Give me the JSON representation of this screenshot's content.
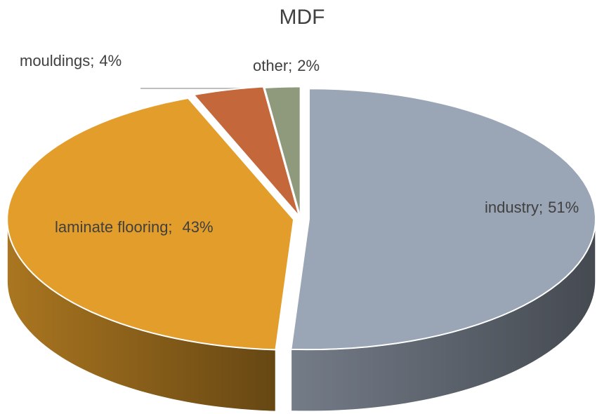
{
  "chart_data": {
    "type": "pie3d",
    "title": "MDF",
    "categories": [
      "industry;",
      "laminate flooring;",
      "mouldings;",
      "other;"
    ],
    "values": [
      51,
      43,
      4,
      2
    ],
    "value_labels": [
      "51%",
      "43%",
      "4%",
      "2%"
    ],
    "colors": [
      "#9aa5b5",
      "#e39d2b",
      "#c4673a",
      "#8f9a7c"
    ]
  }
}
